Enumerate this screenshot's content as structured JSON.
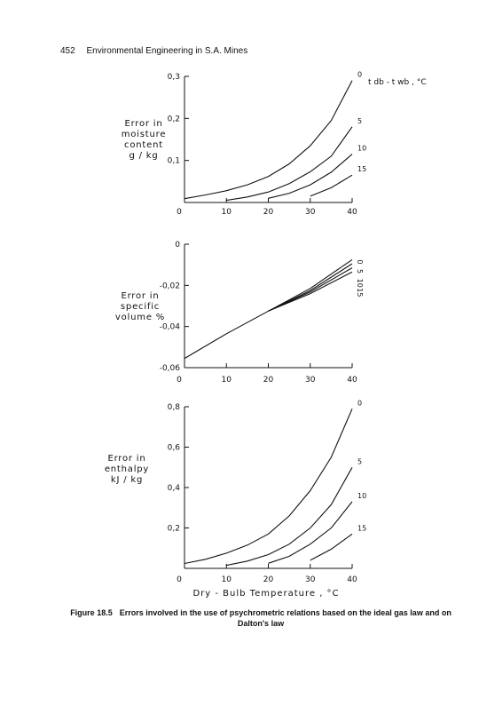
{
  "header": {
    "page_number": "452",
    "book_title": "Environmental Engineering in S.A. Mines"
  },
  "caption": {
    "figure_label": "Figure 18.5",
    "text_line1": "Errors involved in the use of psychrometric relations based on the ideal gas law and on",
    "text_line2": "Dalton's law"
  },
  "chart_data": [
    {
      "type": "line",
      "ylabel": [
        "Error in",
        "moisture",
        "content",
        "g / kg"
      ],
      "legend_title": "t db - t wb , °C",
      "xlim": [
        0,
        40
      ],
      "ylim": [
        0,
        0.3
      ],
      "x_ticks": [
        "0",
        "10",
        "20",
        "30",
        "40"
      ],
      "y_ticks": [
        {
          "v": 0.1,
          "label": "0,1"
        },
        {
          "v": 0.2,
          "label": "0,2"
        },
        {
          "v": 0.3,
          "label": "0,3"
        }
      ],
      "series": [
        {
          "name": "0",
          "x": [
            0,
            5,
            10,
            15,
            20,
            25,
            30,
            35,
            40
          ],
          "y": [
            0.009,
            0.018,
            0.028,
            0.042,
            0.062,
            0.092,
            0.135,
            0.195,
            0.29
          ]
        },
        {
          "name": "5",
          "x": [
            10,
            15,
            20,
            25,
            30,
            35,
            40
          ],
          "y": [
            0.005,
            0.013,
            0.025,
            0.045,
            0.073,
            0.11,
            0.18
          ]
        },
        {
          "name": "10",
          "x": [
            20,
            25,
            30,
            35,
            40
          ],
          "y": [
            0.01,
            0.022,
            0.042,
            0.072,
            0.115
          ]
        },
        {
          "name": "15",
          "x": [
            30,
            35,
            40
          ],
          "y": [
            0.015,
            0.035,
            0.065
          ]
        }
      ]
    },
    {
      "type": "line",
      "ylabel": [
        "Error in",
        "specific",
        "volume %"
      ],
      "xlim": [
        0,
        40
      ],
      "ylim": [
        -0.06,
        0
      ],
      "x_ticks": [
        "0",
        "10",
        "20",
        "30",
        "40"
      ],
      "y_ticks": [
        {
          "v": 0,
          "label": "0"
        },
        {
          "v": -0.02,
          "label": "-0,02"
        },
        {
          "v": -0.04,
          "label": "-0,04"
        },
        {
          "v": -0.06,
          "label": "-0,06"
        }
      ],
      "series": [
        {
          "name": "0",
          "x": [
            0,
            10,
            20,
            30,
            40
          ],
          "y": [
            -0.0555,
            -0.0435,
            -0.0325,
            -0.0215,
            -0.0075
          ]
        },
        {
          "name": "5",
          "x": [
            20,
            30,
            40
          ],
          "y": [
            -0.0325,
            -0.0225,
            -0.0095
          ]
        },
        {
          "name": "10",
          "x": [
            20,
            30,
            40
          ],
          "y": [
            -0.0325,
            -0.0232,
            -0.0115
          ]
        },
        {
          "name": "15",
          "x": [
            20,
            30,
            40
          ],
          "y": [
            -0.0325,
            -0.024,
            -0.0135
          ]
        }
      ]
    },
    {
      "type": "line",
      "ylabel": [
        "Error in",
        "enthalpy",
        "kJ / kg"
      ],
      "xlabel": "Dry - Bulb Temperature , °C",
      "xlim": [
        0,
        40
      ],
      "ylim": [
        0,
        0.8
      ],
      "x_ticks": [
        "0",
        "10",
        "20",
        "30",
        "40"
      ],
      "y_ticks": [
        {
          "v": 0.2,
          "label": "0,2"
        },
        {
          "v": 0.4,
          "label": "0,4"
        },
        {
          "v": 0.6,
          "label": "0,6"
        },
        {
          "v": 0.8,
          "label": "0,8"
        }
      ],
      "series": [
        {
          "name": "0",
          "x": [
            0,
            5,
            10,
            15,
            20,
            25,
            30,
            35,
            40
          ],
          "y": [
            0.024,
            0.045,
            0.075,
            0.115,
            0.17,
            0.26,
            0.385,
            0.55,
            0.79
          ]
        },
        {
          "name": "5",
          "x": [
            10,
            15,
            20,
            25,
            30,
            35,
            40
          ],
          "y": [
            0.015,
            0.036,
            0.068,
            0.12,
            0.2,
            0.315,
            0.5
          ]
        },
        {
          "name": "10",
          "x": [
            20,
            25,
            30,
            35,
            40
          ],
          "y": [
            0.025,
            0.06,
            0.12,
            0.2,
            0.33
          ]
        },
        {
          "name": "15",
          "x": [
            30,
            35,
            40
          ],
          "y": [
            0.04,
            0.095,
            0.17
          ]
        }
      ]
    }
  ]
}
